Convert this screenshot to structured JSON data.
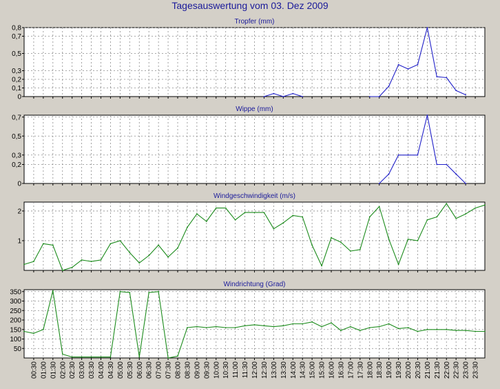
{
  "title": "Tagesauswertung vom 03. Dez 2009",
  "colors": {
    "background": "#d4d0c8",
    "plot_area": "#ffffff",
    "title": "#1a1a9a",
    "rain_series": "#1f1fc8",
    "wind_series": "#1a8a1a",
    "grid": "#8a8a8a"
  },
  "x_tick_labels": [
    "00:30",
    "01:00",
    "01:30",
    "02:00",
    "02:30",
    "03:00",
    "03:30",
    "04:00",
    "04:30",
    "05:00",
    "05:30",
    "06:00",
    "06:30",
    "07:00",
    "07:30",
    "08:00",
    "08:30",
    "09:00",
    "09:30",
    "10:00",
    "10:30",
    "11:00",
    "11:30",
    "12:00",
    "12:30",
    "13:00",
    "13:30",
    "14:00",
    "14:30",
    "15:00",
    "15:30",
    "16:00",
    "16:30",
    "17:00",
    "17:30",
    "18:00",
    "18:30",
    "19:00",
    "19:30",
    "20:00",
    "20:30",
    "21:00",
    "21:30",
    "22:00",
    "22:30",
    "23:00",
    "23:30"
  ],
  "chart_data": [
    {
      "type": "line",
      "title": "Tropfer (mm)",
      "grid": true,
      "ylim": [
        0,
        0.8
      ],
      "yticks": [
        0,
        0.1,
        0.2,
        0.3,
        0.5,
        0.7,
        0.8
      ],
      "ytick_labels": [
        "0",
        "0,1",
        "0,2",
        "0,3",
        "0,5",
        "0,7",
        "0,8"
      ],
      "series": [
        {
          "color": "#1f1fc8",
          "x": [
            "18:00",
            "18:30",
            "19:00",
            "19:30",
            "20:00",
            "20:30",
            "21:00",
            "21:30",
            "22:00",
            "22:30",
            "23:00"
          ],
          "values": [
            0,
            0,
            0.12,
            0.37,
            0.32,
            0.37,
            0.8,
            0.23,
            0.22,
            0.07,
            0.02
          ]
        },
        {
          "color": "#1f1fc8",
          "x": [
            "12:30",
            "13:00",
            "13:30",
            "14:00",
            "14:30"
          ],
          "values": [
            0,
            0.035,
            0,
            0.035,
            0
          ]
        }
      ]
    },
    {
      "type": "line",
      "title": "Wippe (mm)",
      "grid": true,
      "ylim": [
        0,
        0.72
      ],
      "yticks": [
        0,
        0.2,
        0.3,
        0.5,
        0.7
      ],
      "ytick_labels": [
        "0",
        "0,2",
        "0,3",
        "0,5",
        "0,7"
      ],
      "series": [
        {
          "color": "#1f1fc8",
          "x": [
            "18:30",
            "19:00",
            "19:30",
            "20:00",
            "20:30",
            "21:00",
            "21:30",
            "22:00",
            "22:30",
            "23:00"
          ],
          "values": [
            0,
            0.1,
            0.3,
            0.3,
            0.3,
            0.72,
            0.2,
            0.2,
            0.1,
            0
          ]
        }
      ]
    },
    {
      "type": "line",
      "title": "Windgeschwindigkeit (m/s)",
      "grid": true,
      "ylim": [
        0,
        2.3
      ],
      "yticks": [
        1,
        2
      ],
      "ytick_labels": [
        "1",
        "2"
      ],
      "series": [
        {
          "color": "#1a8a1a",
          "x": [
            "00:00",
            "00:30",
            "01:00",
            "01:30",
            "02:00",
            "02:30",
            "03:00",
            "03:30",
            "04:00",
            "04:30",
            "05:00",
            "05:30",
            "06:00",
            "06:30",
            "07:00",
            "07:30",
            "08:00",
            "08:30",
            "09:00",
            "09:30",
            "10:00",
            "10:30",
            "11:00",
            "11:30",
            "12:00",
            "12:30",
            "13:00",
            "13:30",
            "14:00",
            "14:30",
            "15:00",
            "15:30",
            "16:00",
            "16:30",
            "17:00",
            "17:30",
            "18:00",
            "18:30",
            "19:00",
            "19:30",
            "20:00",
            "20:30",
            "21:00",
            "21:30",
            "22:00",
            "22:30",
            "23:00",
            "23:30",
            "24:00"
          ],
          "values": [
            0.2,
            0.3,
            0.9,
            0.85,
            0.0,
            0.1,
            0.35,
            0.3,
            0.35,
            0.9,
            1.0,
            0.6,
            0.25,
            0.5,
            0.85,
            0.45,
            0.75,
            1.45,
            1.9,
            1.65,
            2.1,
            2.1,
            1.7,
            1.95,
            1.95,
            1.95,
            1.4,
            1.6,
            1.85,
            1.8,
            0.85,
            0.15,
            1.1,
            0.95,
            0.65,
            0.7,
            1.8,
            2.15,
            1.05,
            0.2,
            1.05,
            1.0,
            1.7,
            1.8,
            2.25,
            1.75,
            1.9,
            2.1,
            2.2
          ]
        }
      ]
    },
    {
      "type": "line",
      "title": "Windrichtung (Grad)",
      "grid": true,
      "ylim": [
        0,
        360
      ],
      "yticks": [
        50,
        100,
        150,
        200,
        250,
        300,
        350
      ],
      "ytick_labels": [
        "50",
        "100",
        "150",
        "200",
        "250",
        "300",
        "350"
      ],
      "series": [
        {
          "color": "#1a8a1a",
          "x": [
            "00:00",
            "00:30",
            "01:00",
            "01:30",
            "02:00",
            "02:30",
            "03:00",
            "03:30",
            "04:00",
            "04:30",
            "05:00",
            "05:30",
            "06:00",
            "06:30",
            "07:00",
            "07:30",
            "08:00",
            "08:30",
            "09:00",
            "09:30",
            "10:00",
            "10:30",
            "11:00",
            "11:30",
            "12:00",
            "12:30",
            "13:00",
            "13:30",
            "14:00",
            "14:30",
            "15:00",
            "15:30",
            "16:00",
            "16:30",
            "17:00",
            "17:30",
            "18:00",
            "18:30",
            "19:00",
            "19:30",
            "20:00",
            "20:30",
            "21:00",
            "21:30",
            "22:00",
            "22:30",
            "23:00",
            "23:30",
            "24:00"
          ],
          "values": [
            140,
            130,
            150,
            355,
            20,
            5,
            5,
            5,
            5,
            5,
            350,
            345,
            5,
            345,
            350,
            0,
            10,
            160,
            165,
            160,
            165,
            160,
            160,
            170,
            175,
            170,
            165,
            170,
            180,
            180,
            190,
            165,
            185,
            145,
            165,
            145,
            160,
            165,
            180,
            155,
            160,
            140,
            150,
            150,
            150,
            145,
            145,
            140,
            140
          ]
        }
      ]
    }
  ]
}
